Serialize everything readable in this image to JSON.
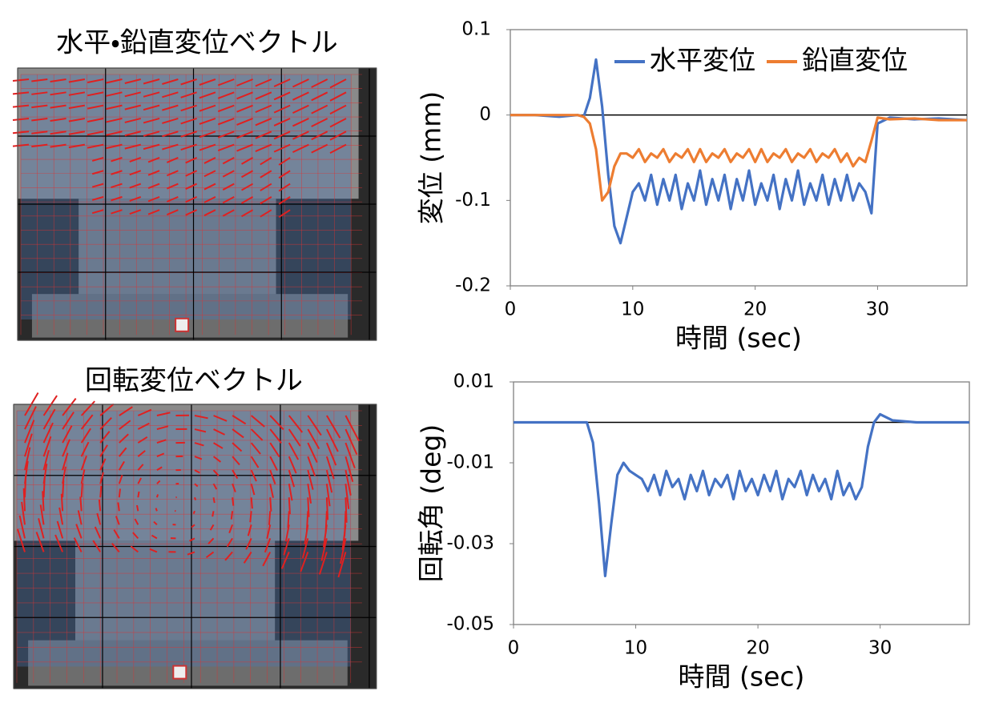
{
  "images": [
    {
      "title": "水平・鉛直変位ベクトル"
    },
    {
      "title": "回転変位ベクトル"
    }
  ],
  "chart_data": [
    {
      "type": "line",
      "x_label": "時間 (sec)",
      "y_label": "変位 (mm)",
      "x": [
        0,
        2,
        4,
        5.5,
        6,
        6.5,
        7,
        7.5,
        8,
        8.5,
        9,
        9.5,
        10,
        10.5,
        11,
        11.5,
        12,
        12.5,
        13,
        13.5,
        14,
        14.5,
        15,
        15.5,
        16,
        16.5,
        17,
        17.5,
        18,
        18.5,
        19,
        19.5,
        20,
        20.5,
        21,
        21.5,
        22,
        22.5,
        23,
        23.5,
        24,
        24.5,
        25,
        25.5,
        26,
        26.5,
        27,
        27.5,
        28,
        28.5,
        29,
        29.5,
        30,
        31,
        33,
        35,
        37.3
      ],
      "series": [
        {
          "name": "水平変位",
          "color": "#4472c4",
          "values": [
            0,
            0,
            -0.002,
            0,
            -0.002,
            0.02,
            0.065,
            0.01,
            -0.07,
            -0.13,
            -0.15,
            -0.12,
            -0.09,
            -0.08,
            -0.1,
            -0.07,
            -0.105,
            -0.075,
            -0.1,
            -0.07,
            -0.11,
            -0.08,
            -0.1,
            -0.065,
            -0.105,
            -0.075,
            -0.1,
            -0.07,
            -0.11,
            -0.075,
            -0.1,
            -0.065,
            -0.105,
            -0.08,
            -0.1,
            -0.07,
            -0.11,
            -0.075,
            -0.1,
            -0.065,
            -0.105,
            -0.08,
            -0.1,
            -0.07,
            -0.105,
            -0.075,
            -0.1,
            -0.07,
            -0.1,
            -0.08,
            -0.09,
            -0.115,
            -0.01,
            -0.003,
            -0.005,
            -0.004,
            -0.006
          ]
        },
        {
          "name": "鉛直変位",
          "color": "#ed7d31",
          "values": [
            0,
            0,
            0,
            0,
            -0.002,
            -0.01,
            -0.04,
            -0.1,
            -0.09,
            -0.06,
            -0.045,
            -0.045,
            -0.05,
            -0.04,
            -0.055,
            -0.045,
            -0.05,
            -0.04,
            -0.055,
            -0.045,
            -0.05,
            -0.04,
            -0.055,
            -0.04,
            -0.055,
            -0.045,
            -0.05,
            -0.04,
            -0.055,
            -0.045,
            -0.05,
            -0.04,
            -0.055,
            -0.04,
            -0.055,
            -0.045,
            -0.05,
            -0.04,
            -0.055,
            -0.045,
            -0.05,
            -0.04,
            -0.055,
            -0.045,
            -0.05,
            -0.04,
            -0.055,
            -0.045,
            -0.06,
            -0.05,
            -0.055,
            -0.03,
            -0.003,
            -0.005,
            -0.004,
            -0.006,
            -0.006
          ]
        }
      ],
      "xlim": [
        0,
        37.3
      ],
      "xticks": [
        0,
        10,
        20,
        30
      ],
      "ylim": [
        -0.2,
        0.1
      ],
      "yticks": [
        -0.2,
        -0.1,
        0,
        0.1
      ],
      "zero_line": true,
      "legend": "top-right"
    },
    {
      "type": "line",
      "x_label": "時間 (sec)",
      "y_label": "回転角 (deg)",
      "x": [
        0,
        2,
        4,
        5.5,
        6,
        6.5,
        7,
        7.5,
        8,
        8.5,
        9,
        9.5,
        10,
        10.5,
        11,
        11.5,
        12,
        12.5,
        13,
        13.5,
        14,
        14.5,
        15,
        15.5,
        16,
        16.5,
        17,
        17.5,
        18,
        18.5,
        19,
        19.5,
        20,
        20.5,
        21,
        21.5,
        22,
        22.5,
        23,
        23.5,
        24,
        24.5,
        25,
        25.5,
        26,
        26.5,
        27,
        27.5,
        28,
        28.5,
        29,
        29.5,
        30,
        31,
        33,
        35,
        37.3
      ],
      "series": [
        {
          "color": "#4472c4",
          "values": [
            0,
            0,
            0,
            0,
            0,
            -0.005,
            -0.02,
            -0.038,
            -0.025,
            -0.013,
            -0.01,
            -0.012,
            -0.013,
            -0.014,
            -0.017,
            -0.013,
            -0.018,
            -0.012,
            -0.016,
            -0.014,
            -0.019,
            -0.013,
            -0.017,
            -0.012,
            -0.018,
            -0.014,
            -0.016,
            -0.013,
            -0.019,
            -0.012,
            -0.017,
            -0.014,
            -0.018,
            -0.013,
            -0.017,
            -0.012,
            -0.019,
            -0.014,
            -0.016,
            -0.012,
            -0.018,
            -0.013,
            -0.017,
            -0.014,
            -0.019,
            -0.012,
            -0.018,
            -0.015,
            -0.019,
            -0.016,
            -0.006,
            0,
            0.002,
            0.0005,
            0,
            0,
            0
          ]
        }
      ],
      "xlim": [
        0,
        37.3
      ],
      "xticks": [
        0,
        10,
        20,
        30
      ],
      "ylim": [
        -0.05,
        0.01
      ],
      "yticks": [
        -0.05,
        -0.03,
        -0.01,
        0.01
      ],
      "zero_line": true
    }
  ]
}
